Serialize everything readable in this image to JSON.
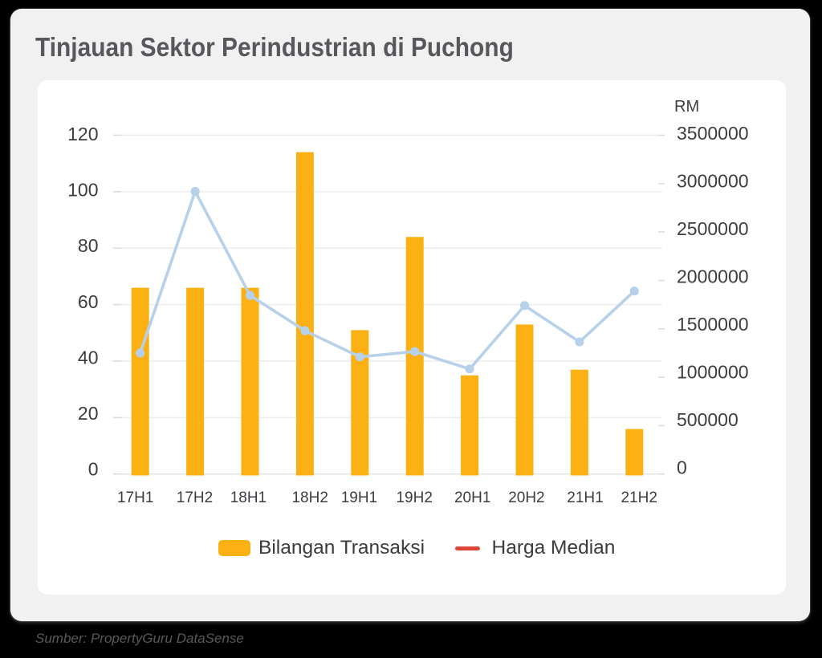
{
  "title": "Tinjauan Sektor Perindustrian di Puchong",
  "source_note": "Sumber: PropertyGuru DataSense",
  "chart_data": {
    "type": "bar",
    "subtype": "combo-bar-line",
    "title": "Tinjauan Sektor Perindustrian di Puchong",
    "categories": [
      "17H1",
      "17H2",
      "18H1",
      "18H2",
      "19H1",
      "19H2",
      "20H1",
      "20H2",
      "21H1",
      "21H2"
    ],
    "series": [
      {
        "name": "Bilangan Transaksi",
        "type": "bar",
        "axis": "left",
        "color": "#fbb013",
        "values": [
          66,
          66,
          66,
          114,
          51,
          84,
          35,
          53,
          37,
          16
        ]
      },
      {
        "name": "Harga Median",
        "type": "line",
        "axis": "right",
        "color": "#b7d1eb",
        "legend_color": "#e0453a",
        "values": [
          1250000,
          2920000,
          1845000,
          1480000,
          1210000,
          1265000,
          1085000,
          1740000,
          1365000,
          1890000
        ]
      }
    ],
    "left_axis": {
      "ticks": [
        "0",
        "20",
        "40",
        "60",
        "80",
        "100",
        "120"
      ],
      "min": 0,
      "max": 120,
      "step": 20
    },
    "right_axis": {
      "label": "RM",
      "ticks": [
        "0",
        "500000",
        "1000000",
        "1500000",
        "2000000",
        "2500000",
        "3000000",
        "3500000"
      ],
      "min": 0,
      "max": 3500000,
      "step": 500000
    },
    "legend": [
      "Bilangan Transaksi",
      "Harga Median"
    ],
    "legend_position": "bottom",
    "grid": true,
    "gridlines": "horizontal"
  },
  "colors": {
    "background": "#000000",
    "card": "#f1f1f2",
    "panel": "#ffffff",
    "title": "#56585b",
    "axis_text": "#3b3d41",
    "gridline": "#ededed",
    "axis_line": "#e4e4e4",
    "bar": "#fbb013",
    "line": "#b7d1eb",
    "legend_red": "#e0453a"
  }
}
